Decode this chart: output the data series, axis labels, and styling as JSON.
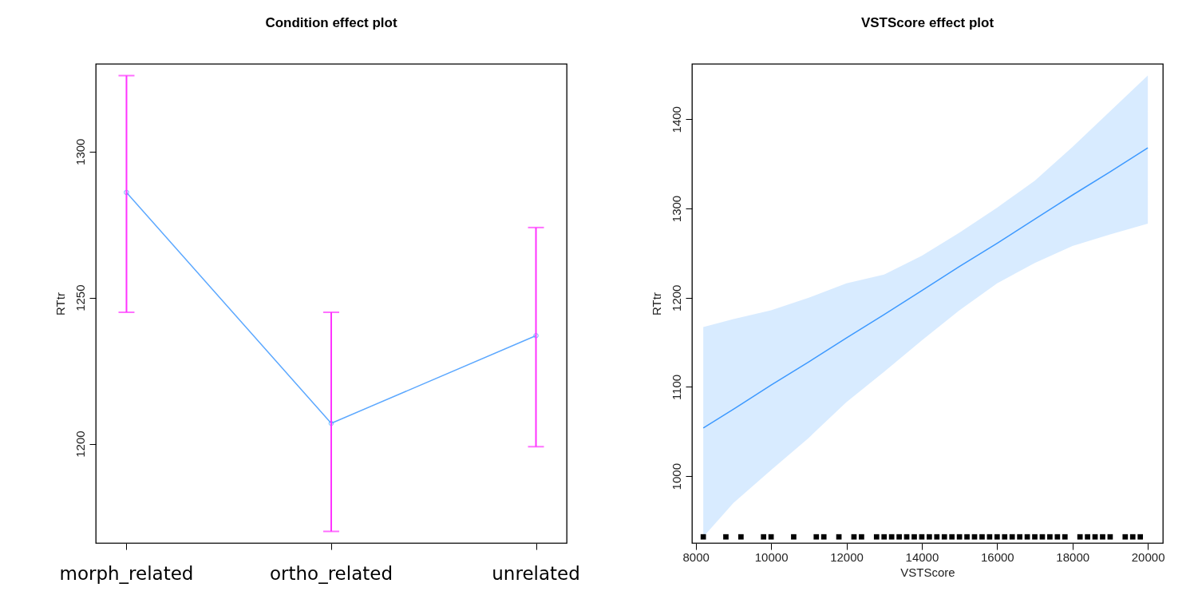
{
  "chart_data": [
    {
      "type": "line",
      "title": "Condition effect plot",
      "ylabel": "RTtr",
      "categories": [
        "morph_related",
        "ortho_related",
        "unrelated"
      ],
      "ylim": [
        1166,
        1330
      ],
      "yticks": [
        1200,
        1250,
        1300
      ],
      "grid": false,
      "marker": "circle",
      "line_style": "solid",
      "series": [
        {
          "color": "#5ca8ff",
          "values": [
            1286,
            1207,
            1237
          ],
          "errors": [
            [
              1245,
              1326
            ],
            [
              1170,
              1245
            ],
            [
              1199,
              1274
            ]
          ]
        }
      ]
    },
    {
      "type": "line",
      "title": "VSTScore effect plot",
      "xlabel": "VSTScore",
      "ylabel": "RTtr",
      "xlim": [
        7900,
        20400
      ],
      "xticks": [
        8000,
        10000,
        12000,
        14000,
        16000,
        18000,
        20000
      ],
      "ylim": [
        925,
        1462
      ],
      "yticks": [
        1000,
        1100,
        1200,
        1300,
        1400
      ],
      "grid": false,
      "line_style": "solid",
      "series": [
        {
          "color": "#3d99ff",
          "x": [
            8200,
            9000,
            10000,
            11000,
            12000,
            13000,
            14000,
            15000,
            16000,
            17000,
            18000,
            19000,
            20000
          ],
          "values": [
            1054,
            1075,
            1102,
            1128,
            1155,
            1181,
            1208,
            1235,
            1261,
            1288,
            1315,
            1341,
            1368
          ],
          "lower": [
            932,
            970,
            1007,
            1043,
            1083,
            1117,
            1152,
            1186,
            1216,
            1239,
            1258,
            1271,
            1283
          ],
          "upper": [
            1167,
            1176,
            1186,
            1200,
            1216,
            1226,
            1247,
            1273,
            1301,
            1331,
            1369,
            1409,
            1449
          ]
        },
        {
          "type": "scatter",
          "marker": "square",
          "color": "#000000",
          "x": [
            8200,
            8800,
            9200,
            9800,
            10000,
            10600,
            11200,
            11400,
            11800,
            12200,
            12400,
            12800,
            13000,
            13200,
            13400,
            13600,
            13800,
            14000,
            14200,
            14400,
            14600,
            14800,
            15000,
            15200,
            15400,
            15600,
            15800,
            16000,
            16200,
            16400,
            16600,
            16800,
            17000,
            17200,
            17400,
            17600,
            17800,
            18200,
            18400,
            18600,
            18800,
            19000,
            19400,
            19600,
            19800
          ],
          "values": [
            932,
            932,
            932,
            932,
            932,
            932,
            932,
            932,
            932,
            932,
            932,
            932,
            932,
            932,
            932,
            932,
            932,
            932,
            932,
            932,
            932,
            932,
            932,
            932,
            932,
            932,
            932,
            932,
            932,
            932,
            932,
            932,
            932,
            932,
            932,
            932,
            932,
            932,
            932,
            932,
            932,
            932,
            932,
            932,
            932
          ]
        }
      ]
    }
  ]
}
